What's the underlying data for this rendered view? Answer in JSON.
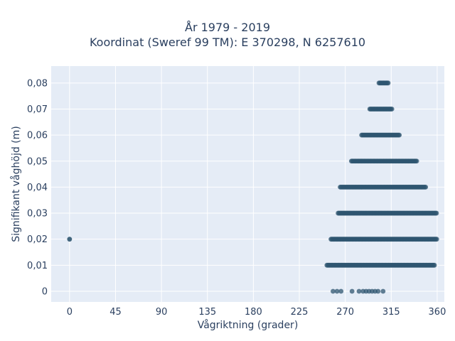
{
  "chart_data": {
    "type": "scatter",
    "title_line1": "År 1979 - 2019",
    "title_line2": "Koordinat (Sweref 99 TM): E 370298, N 6257610",
    "xlabel": "Vågriktning (grader)",
    "ylabel": "Signifikant våghöjd (m)",
    "xlim": [
      -18,
      367
    ],
    "ylim": [
      -0.0041,
      0.0865
    ],
    "xticks": [
      0,
      45,
      90,
      135,
      180,
      225,
      270,
      315,
      360
    ],
    "xtick_labels": [
      "0",
      "45",
      "90",
      "135",
      "180",
      "225",
      "270",
      "315",
      "360"
    ],
    "yticks": [
      0,
      0.01,
      0.02,
      0.03,
      0.04,
      0.05,
      0.06,
      0.07,
      0.08
    ],
    "ytick_labels": [
      "0",
      "0,01",
      "0,02",
      "0,03",
      "0,04",
      "0,05",
      "0,06",
      "0,07",
      "0,08"
    ],
    "grid": true,
    "plot_bgcolor": "#e5ecf6",
    "marker_color": "#2f5670",
    "bands": [
      {
        "y": 0.0,
        "x_min": 258,
        "x_max": 307,
        "sparse": true
      },
      {
        "y": 0.01,
        "x_min": 252,
        "x_max": 358,
        "sparse": false
      },
      {
        "y": 0.02,
        "x_min": 256,
        "x_max": 360,
        "sparse": false
      },
      {
        "y": 0.03,
        "x_min": 263,
        "x_max": 360,
        "sparse": false
      },
      {
        "y": 0.04,
        "x_min": 265,
        "x_max": 349,
        "sparse": false
      },
      {
        "y": 0.05,
        "x_min": 276,
        "x_max": 340,
        "sparse": false
      },
      {
        "y": 0.06,
        "x_min": 286,
        "x_max": 323,
        "sparse": false
      },
      {
        "y": 0.07,
        "x_min": 294,
        "x_max": 316,
        "sparse": false
      },
      {
        "y": 0.08,
        "x_min": 303,
        "x_max": 312,
        "sparse": false
      }
    ],
    "isolated_points": [
      {
        "x": 0,
        "y": 0.02
      }
    ]
  }
}
